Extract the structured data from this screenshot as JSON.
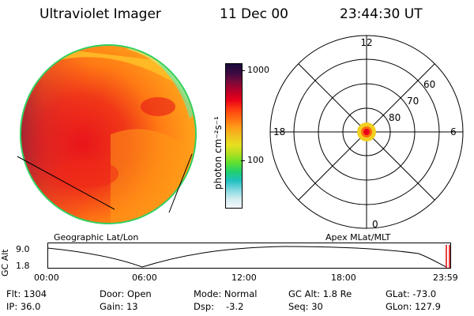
{
  "header": {
    "instrument": "Ultraviolet Imager",
    "date": "11 Dec 00",
    "time": "23:44:30 UT"
  },
  "colorbar": {
    "unit_label": "photon cm⁻²s⁻¹",
    "ticks": [
      "1000",
      "100"
    ],
    "colors": [
      "#1a0a3a",
      "#3a0a40",
      "#7a0a3a",
      "#b8002a",
      "#e8001a",
      "#ff3a10",
      "#ff6a10",
      "#ff9a18",
      "#f0c020",
      "#e8e020",
      "#b0e020",
      "#60e030",
      "#20d070",
      "#20c0c0",
      "#80d8e0",
      "#d0ecf0",
      "#f4f8fa"
    ]
  },
  "polar": {
    "mlt_labels": {
      "top": "12",
      "left": "18",
      "right": "6",
      "bottom": "0"
    },
    "lat_labels": [
      "60",
      "70",
      "80"
    ]
  },
  "track": {
    "left_label": "Geographic Lat/Lon",
    "right_label": "Apex MLat/MLT",
    "y_axis_label": "GC Alt",
    "y_ticks": [
      "9.0",
      "1.8"
    ],
    "x_ticks": [
      "00:00",
      "06:00",
      "12:00",
      "18:00",
      "23:59"
    ]
  },
  "info": {
    "flt": "Flt: 1304",
    "ip": "IP: 36.0",
    "door": "Door: Open",
    "gain": "Gain: 13",
    "mode": "Mode: Normal",
    "dsp_label": "Dsp:",
    "dsp_value": "-3.2",
    "gcalt": "GC Alt: 1.8 Re",
    "seq": "Seq: 30",
    "glat": "GLat: -73.0",
    "glon": "GLon: 127.9"
  }
}
